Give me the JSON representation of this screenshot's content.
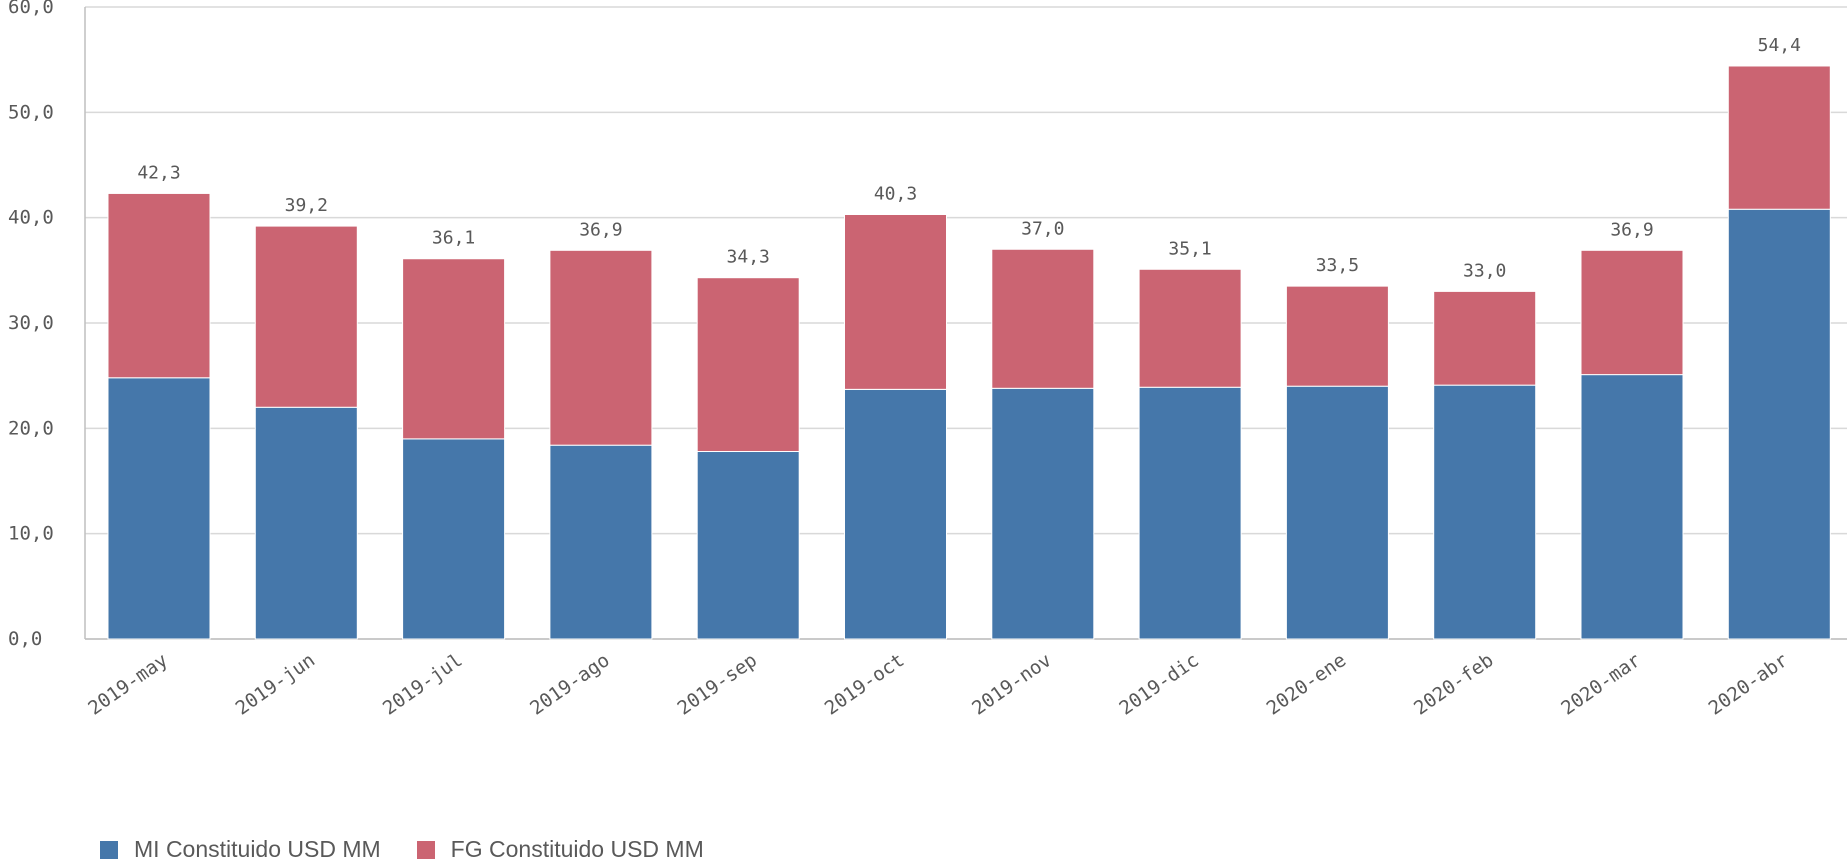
{
  "colors": {
    "mi": "#4577aa",
    "fg": "#cb6472",
    "grid": "#d9d9d9",
    "text": "#595959"
  },
  "chart_data": {
    "type": "bar",
    "stacked": true,
    "categories": [
      "2019-may",
      "2019-jun",
      "2019-jul",
      "2019-ago",
      "2019-sep",
      "2019-oct",
      "2019-nov",
      "2019-dic",
      "2020-ene",
      "2020-feb",
      "2020-mar",
      "2020-abr"
    ],
    "series": [
      {
        "name": "MI Constituido USD MM",
        "color": "#4577aa",
        "values": [
          24.8,
          22.0,
          19.0,
          18.4,
          17.8,
          23.7,
          23.8,
          23.9,
          24.0,
          24.1,
          25.1,
          40.8
        ]
      },
      {
        "name": "FG Constituido USD MM",
        "color": "#cb6472",
        "values": [
          17.5,
          17.2,
          17.1,
          18.5,
          16.5,
          16.6,
          13.2,
          11.2,
          9.5,
          8.9,
          11.8,
          13.6
        ]
      }
    ],
    "totals": [
      "42,3",
      "39,2",
      "36,1",
      "36,9",
      "34,3",
      "40,3",
      "37,0",
      "35,1",
      "33,5",
      "33,0",
      "36,9",
      "54,4"
    ],
    "ylim": [
      0,
      60
    ],
    "yticks": [
      "0,0",
      "10,0",
      "20,0",
      "30,0",
      "40,0",
      "50,0",
      "60,0"
    ],
    "grid": true,
    "legend_position": "bottom-left"
  }
}
